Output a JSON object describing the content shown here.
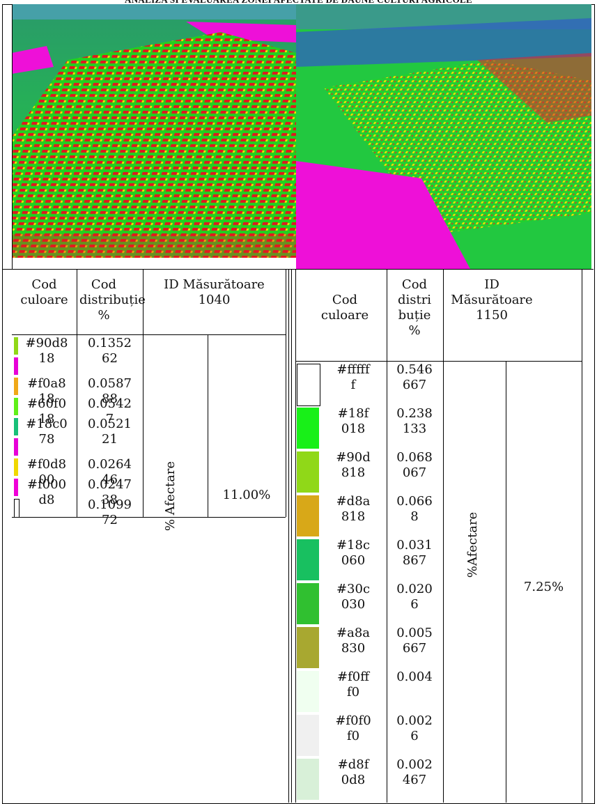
{
  "header": {
    "title": "ANALIZA SI EVALUAREA ZONEI AFECTATE DE DAUNE CULTURI AGRICOLE"
  },
  "left_table": {
    "h_cod_culoare": "Cod culoare",
    "h_cod_distributie": "Cod distribuție %",
    "h_id_label": "ID Măsurătoare",
    "h_id_value": "1040",
    "afectare_label": "% Afectare",
    "afectare_value": "11.00%",
    "rows": [
      {
        "code": "#90d8\n18",
        "value": "0.1352\n62",
        "swatch": "#90d818"
      },
      {
        "code": "",
        "value": "",
        "swatch": "#e800d8"
      },
      {
        "code": "#f0a8\n18",
        "value": "0.0587\n88",
        "swatch": "#f0a818"
      },
      {
        "code": "#60f0\n18",
        "value": "0.0542\n7",
        "swatch": "#60f018"
      },
      {
        "code": "#18c0\n78",
        "value": "0.0521\n21",
        "swatch": "#18c078"
      },
      {
        "code": "",
        "value": "",
        "swatch": "#e800d8"
      },
      {
        "code": "#f0d8\n00",
        "value": "0.0264\n46",
        "swatch": "#f0d800"
      },
      {
        "code": "#f000\nd8",
        "value": "0.0247\n38",
        "swatch": "#f000d8"
      },
      {
        "code": "",
        "value": "0.1099\n72",
        "swatch": "#ffffff"
      }
    ]
  },
  "right_table": {
    "h_cod_culoare": "Cod culoare",
    "h_cod_distributie": "Cod distri buție %",
    "h_id_label": "ID Măsurătoare",
    "h_id_value": "1150",
    "afectare_label": "%Afectare",
    "afectare_value": "7.25%",
    "rows": [
      {
        "code": "#fffff\nf",
        "value": "0.546\n667",
        "swatch": "#ffffff"
      },
      {
        "code": "#18f\n018",
        "value": "0.238\n133",
        "swatch": "#18f018"
      },
      {
        "code": "#90d\n818",
        "value": "0.068\n067",
        "swatch": "#90d818"
      },
      {
        "code": "#d8a\n818",
        "value": "0.066\n8",
        "swatch": "#d8a818"
      },
      {
        "code": "#18c\n060",
        "value": "0.031\n867",
        "swatch": "#18c060"
      },
      {
        "code": "#30c\n030",
        "value": "0.020\n6",
        "swatch": "#30c030"
      },
      {
        "code": "#a8a\n830",
        "value": "0.005\n667",
        "swatch": "#a8a830"
      },
      {
        "code": "#f0ff\nf0",
        "value": "0.004",
        "swatch": "#f0fff0"
      },
      {
        "code": "#f0f0\nf0",
        "value": "0.002\n6",
        "swatch": "#f0f0f0"
      },
      {
        "code": "#d8f\n0d8",
        "value": "0.002\n467",
        "swatch": "#d8f0d8"
      }
    ]
  }
}
